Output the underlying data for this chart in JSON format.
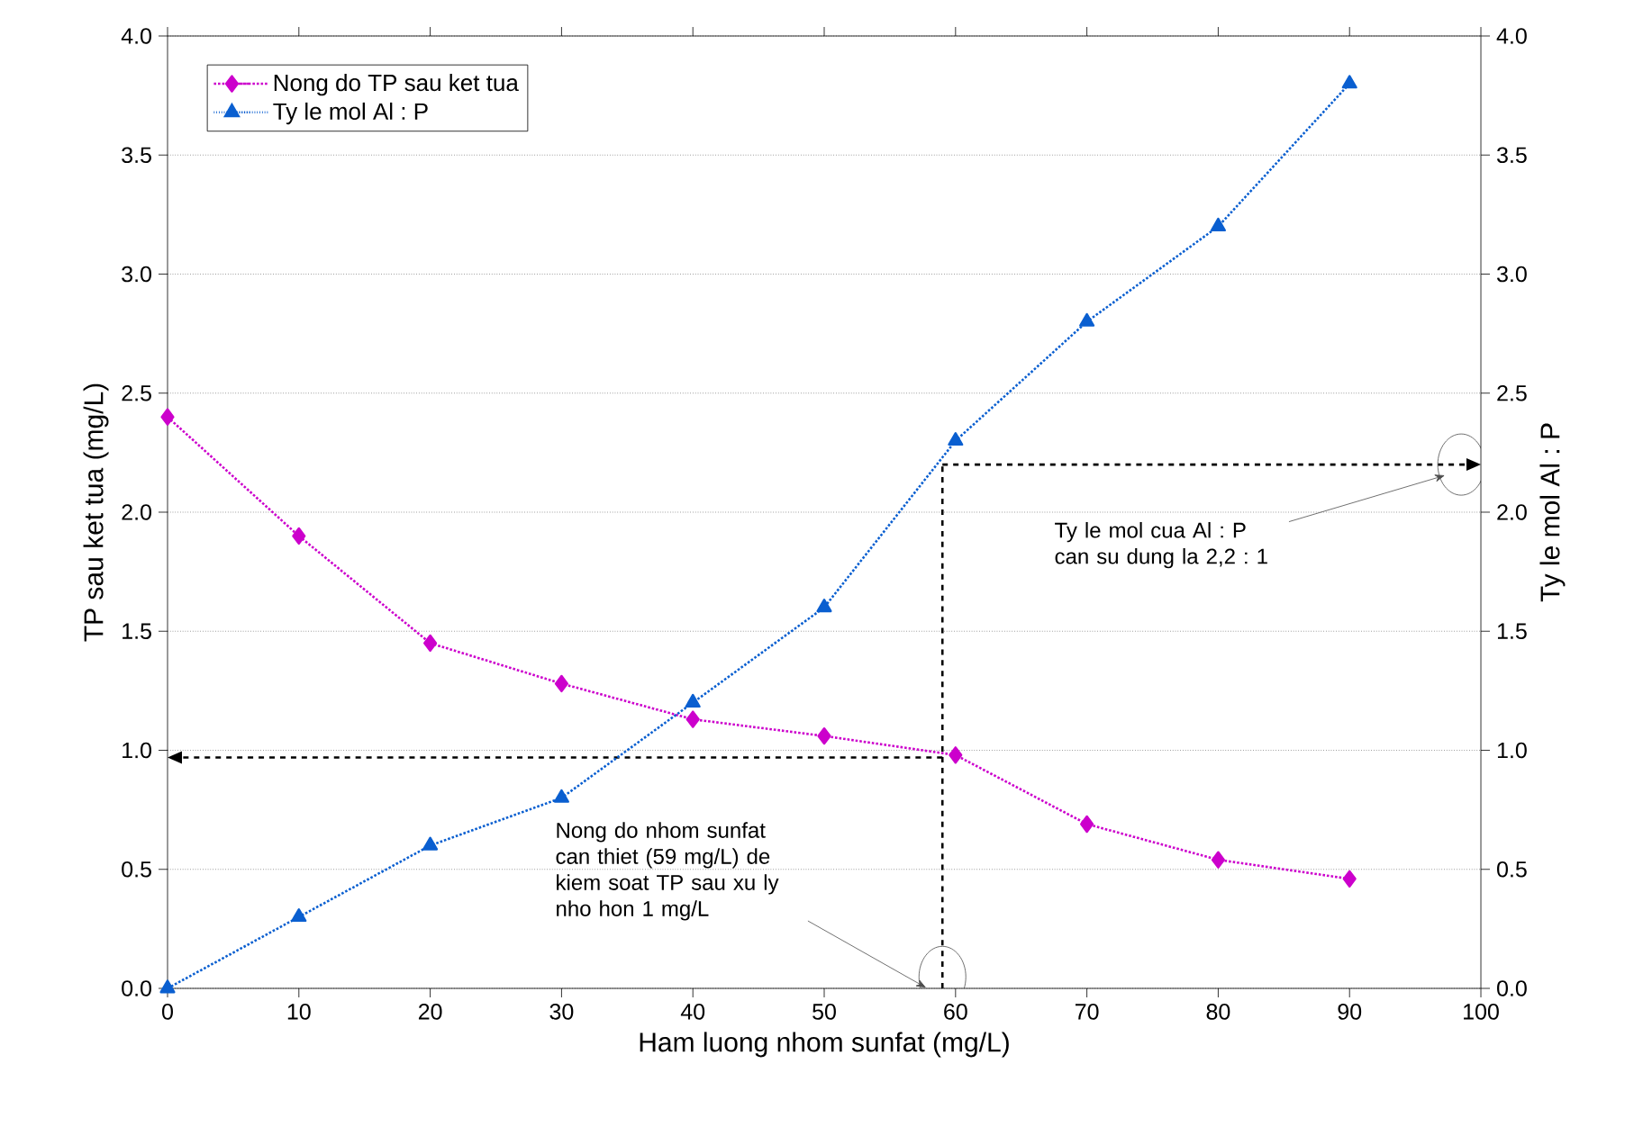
{
  "chart_data": {
    "type": "line",
    "xlabel": "Ham luong nhom sunfat (mg/L)",
    "ylabel": "TP sau ket tua (mg/L)",
    "y2label": "Ty le mol Al : P",
    "x": [
      0,
      10,
      20,
      30,
      40,
      50,
      60,
      70,
      80,
      90
    ],
    "series": [
      {
        "name": "Nong do TP sau ket tua",
        "color": "#cc00cc",
        "marker": "diamond",
        "values": [
          2.4,
          1.9,
          1.45,
          1.28,
          1.13,
          1.06,
          0.98,
          0.69,
          0.54,
          0.46
        ]
      },
      {
        "name": "Ty le mol Al : P",
        "color": "#0a5fd0",
        "marker": "triangle",
        "axis": "y2",
        "values": [
          0.0,
          0.3,
          0.6,
          0.8,
          1.2,
          1.6,
          2.3,
          2.8,
          3.2,
          3.8
        ]
      }
    ],
    "xlim": [
      0,
      100
    ],
    "xticks": [
      0,
      10,
      20,
      30,
      40,
      50,
      60,
      70,
      80,
      90,
      100
    ],
    "ylim": [
      0,
      4
    ],
    "yticks": [
      {
        "value": 0,
        "label": "0.0"
      },
      0.5,
      {
        "value": 1,
        "label": "1.0"
      },
      1.5,
      {
        "value": 2,
        "label": "2.0"
      },
      2.5,
      {
        "value": 3,
        "label": "3.0"
      },
      3.5,
      {
        "value": 4,
        "label": "4.0"
      }
    ],
    "y2lim": [
      0,
      4
    ],
    "y2ticks": [
      {
        "value": 0,
        "label": "0.0"
      },
      0.5,
      {
        "value": 1,
        "label": "1.0"
      },
      1.5,
      {
        "value": 2,
        "label": "2.0"
      },
      2.5,
      {
        "value": 3,
        "label": "3.0"
      },
      3.5,
      {
        "value": 4,
        "label": "4.0"
      }
    ],
    "ref_lines": [
      {
        "axis": "x",
        "value": 59,
        "color": "#000000",
        "line_style": "dashed"
      },
      {
        "axis": "y",
        "value": 0.97,
        "color": "#000000",
        "line_style": "dashed"
      },
      {
        "axis": "y2",
        "value": 2.2,
        "color": "#000000",
        "line_style": "dashed"
      }
    ],
    "annotations": [
      "Nong do nhom sunfat can thiet (59 mg/L) de kiem soat TP sau xu ly nho hon 1 mg/L",
      "Ty le mol cua Al : P can su dung la 2,2 : 1"
    ],
    "grid": "y",
    "legend": "top left",
    "line_style": "dotted"
  }
}
